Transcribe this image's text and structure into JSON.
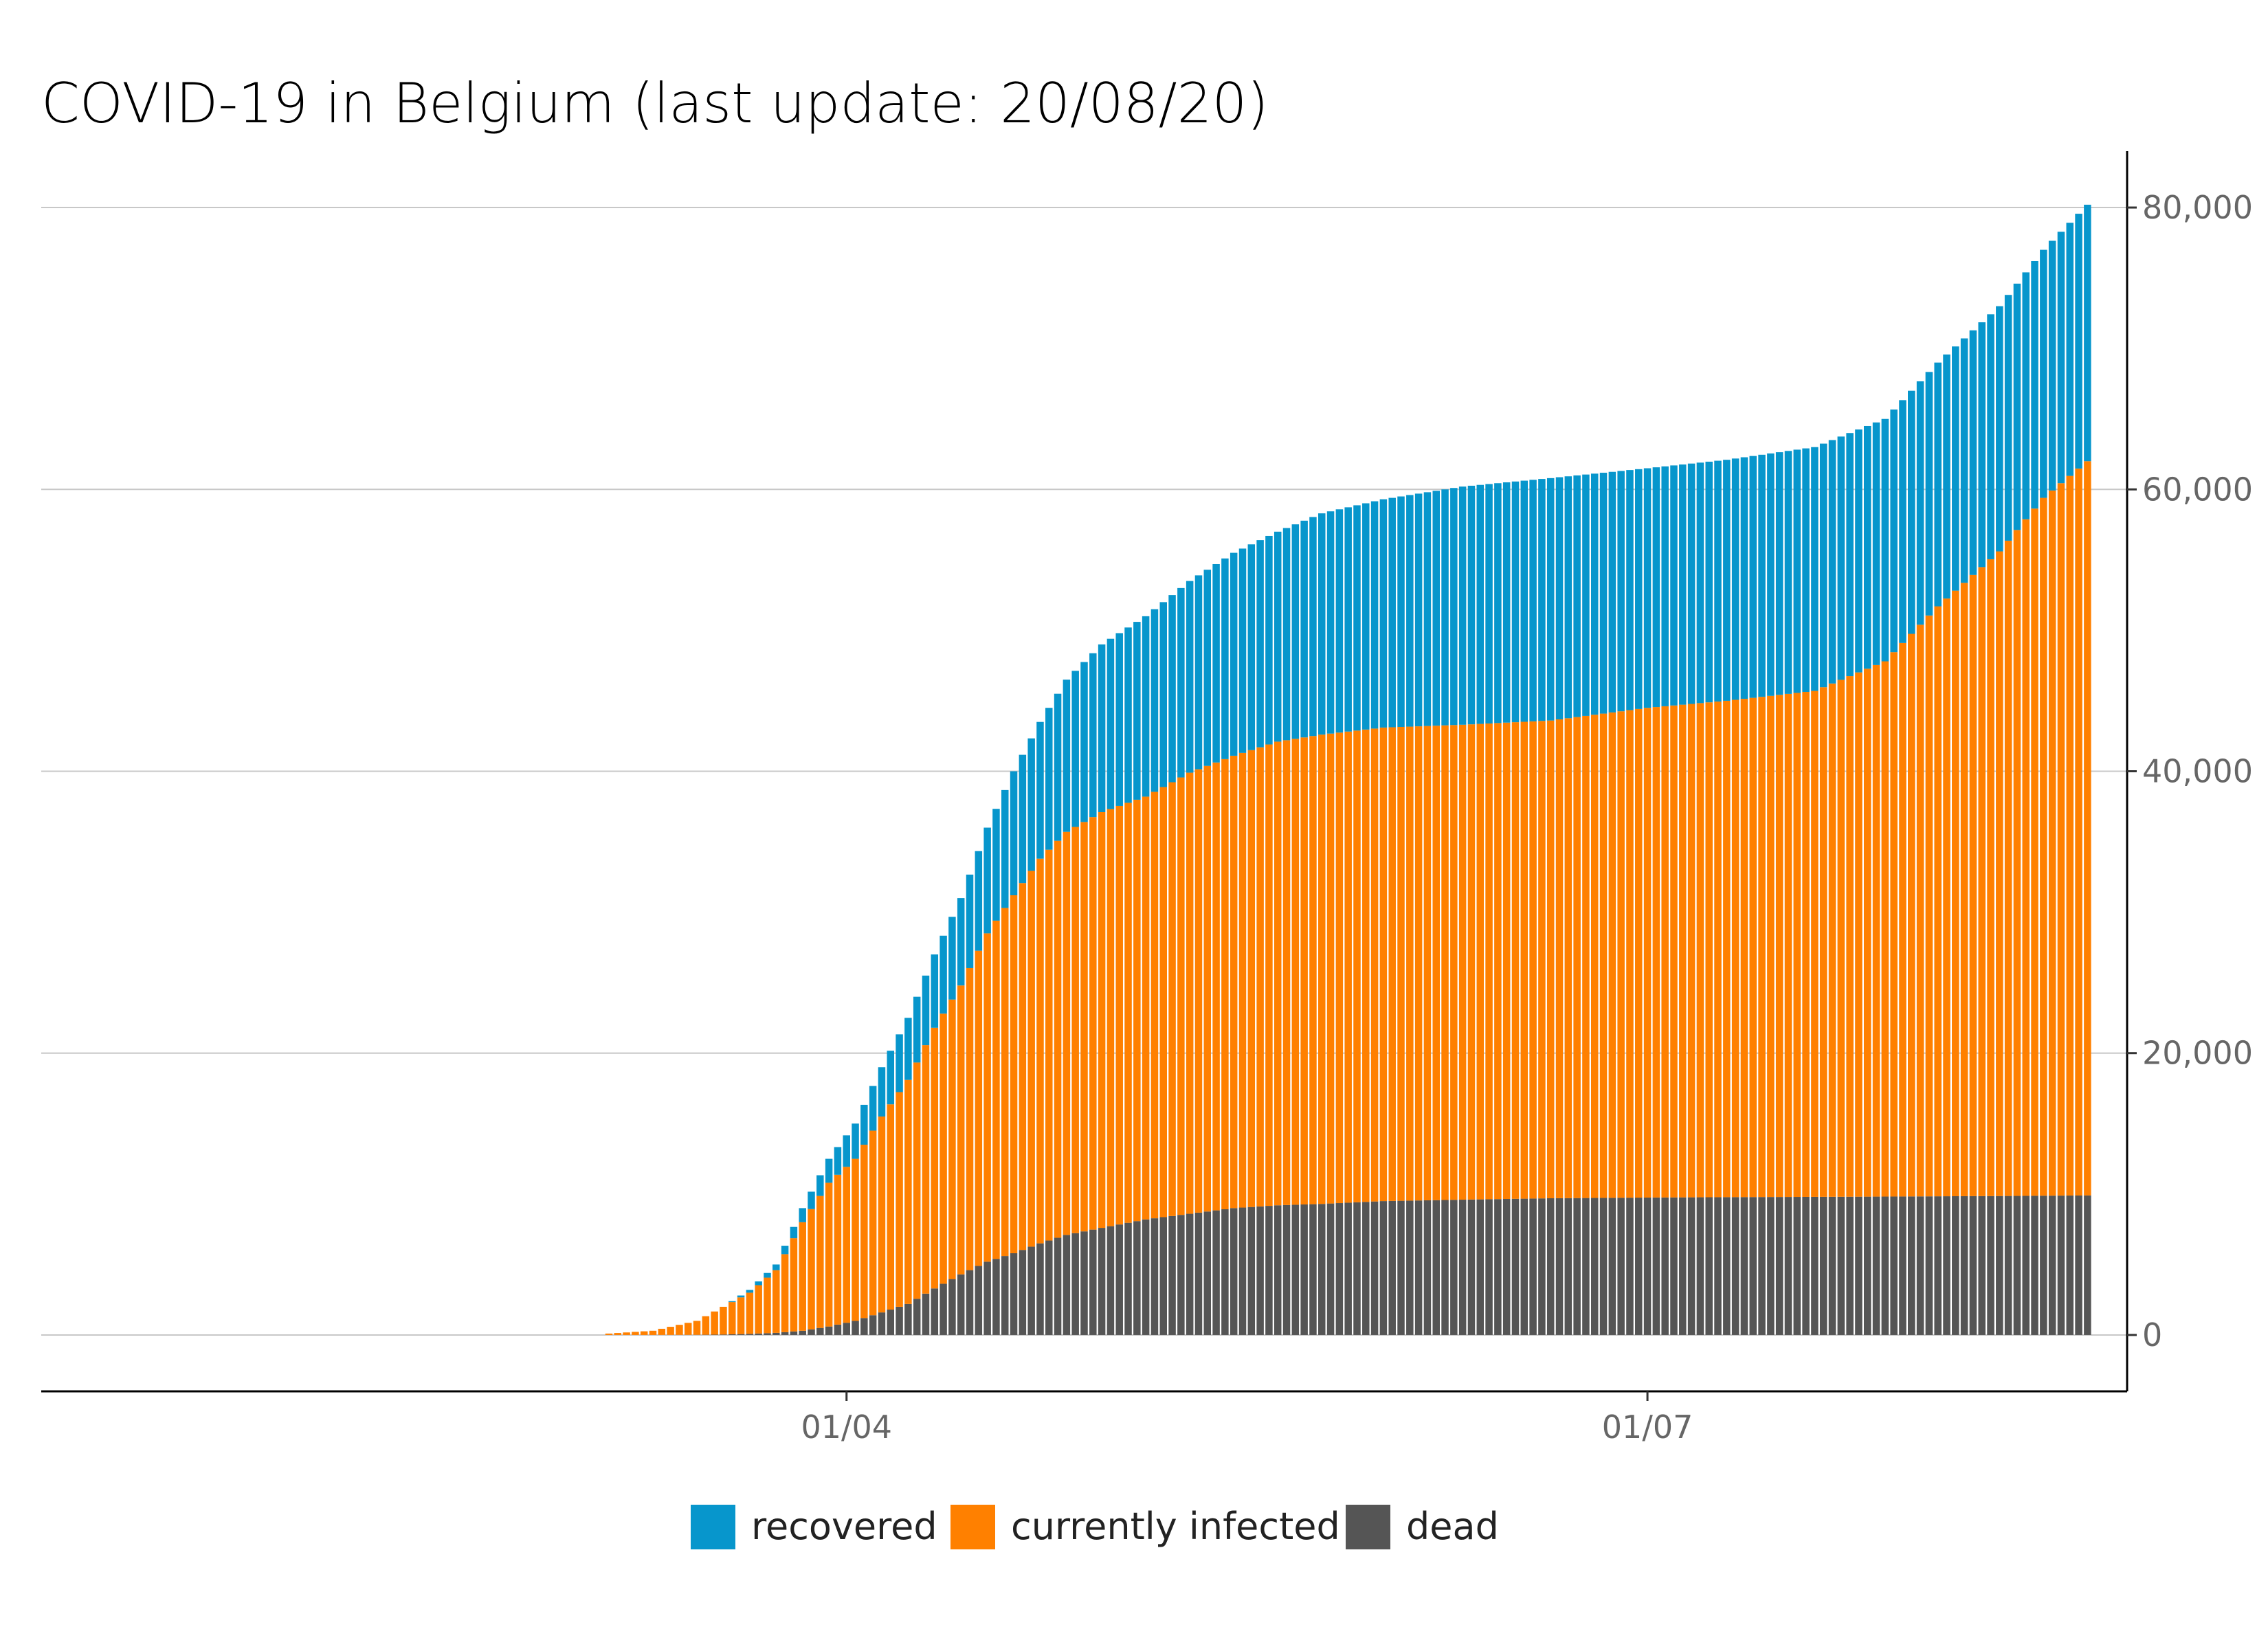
{
  "chart_data": {
    "type": "bar",
    "stacked": true,
    "title": "COVID-19 in Belgium (last update: 20/08/20)",
    "xlabel": "",
    "ylabel": "",
    "y_axis_position": "right",
    "ylim": [
      -4000,
      84000
    ],
    "yticks": [
      0,
      20000,
      40000,
      60000,
      80000
    ],
    "ytick_labels": [
      "0",
      "20,000",
      "40,000",
      "60,000",
      "80,000"
    ],
    "x_start_date": "2020-01-01",
    "x_end_date": "2020-08-20",
    "xticks": [
      {
        "date": "2020-04-01",
        "label": "01/04"
      },
      {
        "date": "2020-07-01",
        "label": "01/07"
      }
    ],
    "grid": "horizontal",
    "legend_position": "bottom",
    "stack_order": [
      "dead",
      "currently infected",
      "recovered"
    ],
    "series": [
      {
        "name": "recovered",
        "color": "#0796CC"
      },
      {
        "name": "currently infected",
        "color": "#FF8000"
      },
      {
        "name": "dead",
        "color": "#555555"
      }
    ],
    "data_points": [
      {
        "date": "2020-03-05",
        "total": 100,
        "dead": 0,
        "recovered": 0
      },
      {
        "date": "2020-03-10",
        "total": 300,
        "dead": 0,
        "recovered": 0
      },
      {
        "date": "2020-03-15",
        "total": 1000,
        "dead": 10,
        "recovered": 0
      },
      {
        "date": "2020-03-18",
        "total": 2000,
        "dead": 30,
        "recovered": 0
      },
      {
        "date": "2020-03-21",
        "total": 3200,
        "dead": 80,
        "recovered": 200
      },
      {
        "date": "2020-03-24",
        "total": 5000,
        "dead": 150,
        "recovered": 400
      },
      {
        "date": "2020-03-27",
        "total": 9000,
        "dead": 300,
        "recovered": 1000
      },
      {
        "date": "2020-03-30",
        "total": 12500,
        "dead": 600,
        "recovered": 1700
      },
      {
        "date": "2020-04-02",
        "total": 15000,
        "dead": 1000,
        "recovered": 2500
      },
      {
        "date": "2020-04-05",
        "total": 19000,
        "dead": 1600,
        "recovered": 3500
      },
      {
        "date": "2020-04-08",
        "total": 22500,
        "dead": 2200,
        "recovered": 4400
      },
      {
        "date": "2020-04-11",
        "total": 27000,
        "dead": 3300,
        "recovered": 5200
      },
      {
        "date": "2020-04-14",
        "total": 31000,
        "dead": 4300,
        "recovered": 6200
      },
      {
        "date": "2020-04-17",
        "total": 36000,
        "dead": 5200,
        "recovered": 7500
      },
      {
        "date": "2020-04-20",
        "total": 40000,
        "dead": 5800,
        "recovered": 8800
      },
      {
        "date": "2020-04-23",
        "total": 43500,
        "dead": 6500,
        "recovered": 9700
      },
      {
        "date": "2020-04-26",
        "total": 46500,
        "dead": 7100,
        "recovered": 10800
      },
      {
        "date": "2020-04-30",
        "total": 49000,
        "dead": 7600,
        "recovered": 11900
      },
      {
        "date": "2020-05-05",
        "total": 51000,
        "dead": 8200,
        "recovered": 12800
      },
      {
        "date": "2020-05-10",
        "total": 53500,
        "dead": 8600,
        "recovered": 13600
      },
      {
        "date": "2020-05-15",
        "total": 55500,
        "dead": 9000,
        "recovered": 14400
      },
      {
        "date": "2020-05-20",
        "total": 57000,
        "dead": 9200,
        "recovered": 14900
      },
      {
        "date": "2020-05-25",
        "total": 58300,
        "dead": 9300,
        "recovered": 15700
      },
      {
        "date": "2020-06-01",
        "total": 59300,
        "dead": 9500,
        "recovered": 16200
      },
      {
        "date": "2020-06-10",
        "total": 60200,
        "dead": 9600,
        "recovered": 16900
      },
      {
        "date": "2020-06-20",
        "total": 60800,
        "dead": 9700,
        "recovered": 17200
      },
      {
        "date": "2020-07-01",
        "total": 61500,
        "dead": 9750,
        "recovered": 17000
      },
      {
        "date": "2020-07-10",
        "total": 62100,
        "dead": 9780,
        "recovered": 17100
      },
      {
        "date": "2020-07-20",
        "total": 63000,
        "dead": 9800,
        "recovered": 17300
      },
      {
        "date": "2020-07-28",
        "total": 65000,
        "dead": 9820,
        "recovered": 17200
      },
      {
        "date": "2020-08-03",
        "total": 69000,
        "dead": 9840,
        "recovered": 17300
      },
      {
        "date": "2020-08-10",
        "total": 73000,
        "dead": 9860,
        "recovered": 17400
      },
      {
        "date": "2020-08-15",
        "total": 77000,
        "dead": 9880,
        "recovered": 17600
      },
      {
        "date": "2020-08-20",
        "total": 80200,
        "dead": 9900,
        "recovered": 18200
      }
    ]
  }
}
